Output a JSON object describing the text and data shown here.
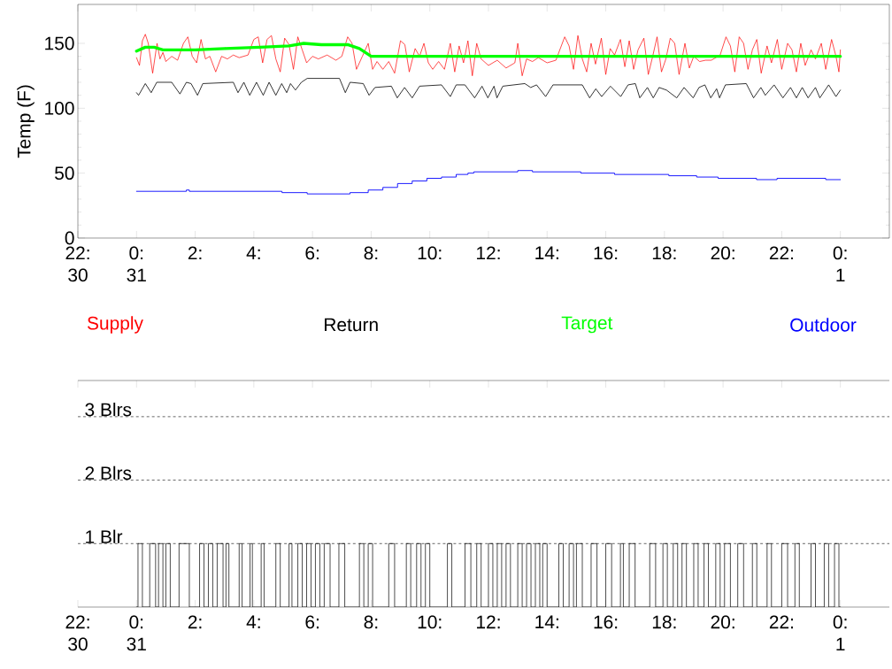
{
  "chart_data": [
    {
      "type": "line",
      "ylabel": "Temp (F)",
      "xlim": [
        -2,
        25.67
      ],
      "ylim": [
        0,
        180
      ],
      "xticks": [
        {
          "value": -2,
          "label": "22: 30"
        },
        {
          "value": 0,
          "label": "0: 31"
        },
        {
          "value": 2,
          "label": "2:"
        },
        {
          "value": 4,
          "label": "4:"
        },
        {
          "value": 6,
          "label": "6:"
        },
        {
          "value": 8,
          "label": "8:"
        },
        {
          "value": 10,
          "label": "10:"
        },
        {
          "value": 12,
          "label": "12:"
        },
        {
          "value": 14,
          "label": "14:"
        },
        {
          "value": 16,
          "label": "16:"
        },
        {
          "value": 18,
          "label": "18:"
        },
        {
          "value": 20,
          "label": "20:"
        },
        {
          "value": 22,
          "label": "22:"
        },
        {
          "value": 24,
          "label": "0: 1"
        }
      ],
      "yticks": [
        0,
        50,
        100,
        150
      ],
      "legend": "bottom",
      "series": [
        {
          "name": "Supply",
          "color": "#ff0000",
          "x": [
            0,
            0.1,
            0.2,
            0.3,
            0.4,
            0.55,
            0.7,
            0.8,
            0.9,
            1.0,
            1.2,
            1.4,
            1.6,
            1.75,
            1.9,
            2.05,
            2.2,
            2.35,
            2.5,
            2.7,
            2.9,
            3.1,
            3.3,
            3.5,
            3.8,
            4.0,
            4.15,
            4.3,
            4.45,
            4.6,
            4.75,
            4.9,
            5.05,
            5.2,
            5.35,
            5.5,
            5.65,
            5.8,
            6.0,
            6.2,
            6.5,
            6.8,
            7.0,
            7.2,
            7.35,
            7.5,
            7.7,
            7.9,
            8.05,
            8.2,
            8.4,
            8.6,
            8.8,
            9.0,
            9.15,
            9.3,
            9.5,
            9.65,
            9.8,
            9.95,
            10.1,
            10.3,
            10.5,
            10.7,
            10.85,
            11.0,
            11.15,
            11.3,
            11.45,
            11.6,
            11.75,
            12.0,
            12.3,
            12.6,
            12.9,
            13.0,
            13.15,
            13.3,
            13.5,
            13.7,
            14.0,
            14.3,
            14.6,
            14.75,
            14.9,
            15.05,
            15.2,
            15.35,
            15.5,
            15.65,
            15.85,
            16.0,
            16.15,
            16.3,
            16.5,
            16.65,
            16.8,
            16.95,
            17.1,
            17.3,
            17.45,
            17.6,
            17.75,
            17.9,
            18.05,
            18.2,
            18.35,
            18.5,
            18.7,
            18.85,
            19.0,
            19.2,
            19.4,
            19.6,
            19.9,
            20.1,
            20.25,
            20.4,
            20.55,
            20.7,
            20.85,
            21.0,
            21.15,
            21.3,
            21.5,
            21.65,
            21.85,
            22.0,
            22.2,
            22.35,
            22.5,
            22.65,
            22.8,
            23.0,
            23.15,
            23.35,
            23.5,
            23.7,
            23.85,
            23.95,
            24.0
          ],
          "values": [
            139,
            133,
            152,
            157,
            150,
            127,
            150,
            138,
            143,
            136,
            140,
            137,
            150,
            155,
            140,
            135,
            153,
            138,
            140,
            128,
            140,
            138,
            141,
            139,
            141,
            153,
            155,
            135,
            153,
            156,
            138,
            128,
            154,
            149,
            130,
            155,
            145,
            135,
            140,
            138,
            141,
            137,
            140,
            155,
            150,
            130,
            140,
            150,
            130,
            136,
            130,
            136,
            127,
            152,
            149,
            128,
            146,
            140,
            150,
            135,
            130,
            136,
            130,
            150,
            128,
            148,
            135,
            152,
            125,
            150,
            138,
            133,
            137,
            131,
            135,
            150,
            125,
            138,
            136,
            139,
            135,
            137,
            155,
            148,
            130,
            156,
            138,
            128,
            150,
            134,
            154,
            126,
            146,
            141,
            153,
            132,
            152,
            130,
            145,
            154,
            126,
            140,
            155,
            128,
            138,
            154,
            150,
            126,
            150,
            131,
            140,
            136,
            137,
            137,
            141,
            155,
            148,
            128,
            155,
            150,
            130,
            145,
            153,
            127,
            148,
            135,
            153,
            130,
            150,
            145,
            128,
            150,
            133,
            145,
            138,
            150,
            130,
            153,
            140,
            128,
            145
          ]
        },
        {
          "name": "Return",
          "color": "#000000",
          "x": [
            0,
            0.07,
            0.3,
            0.5,
            0.69,
            1.2,
            1.48,
            1.7,
            1.86,
            2.08,
            2.26,
            3.3,
            3.46,
            3.66,
            3.86,
            4.09,
            4.32,
            4.52,
            4.75,
            4.95,
            5.12,
            5.25,
            5.42,
            5.62,
            5.82,
            6.92,
            7.12,
            7.28,
            7.73,
            7.93,
            8.13,
            8.69,
            8.89,
            9.14,
            9.4,
            9.65,
            10.4,
            10.7,
            10.9,
            11.2,
            11.33,
            11.53,
            11.78,
            11.98,
            12.19,
            12.29,
            12.49,
            13.24,
            13.44,
            13.64,
            13.95,
            14.2,
            15.2,
            15.45,
            15.66,
            15.86,
            16.16,
            16.51,
            16.76,
            17.01,
            17.16,
            17.42,
            17.62,
            17.82,
            18.07,
            18.42,
            18.67,
            18.98,
            19.18,
            19.38,
            19.58,
            19.78,
            19.88,
            20.08,
            20.79,
            21.04,
            21.29,
            21.44,
            21.74,
            22.04,
            22.3,
            22.5,
            22.7,
            22.9,
            23.15,
            23.3,
            23.6,
            23.85,
            24.0
          ],
          "values": [
            112,
            110,
            119,
            112,
            120,
            120,
            111,
            120,
            119,
            110,
            119,
            120,
            112,
            120,
            110,
            120,
            110,
            120,
            110,
            119,
            112,
            119,
            114,
            120,
            123,
            123,
            112,
            120,
            119,
            110,
            116,
            117,
            108,
            116,
            108,
            117,
            118,
            109,
            118,
            118,
            114,
            108,
            117,
            108,
            117,
            108,
            117,
            119,
            116,
            118,
            109,
            118,
            118,
            108,
            115,
            109,
            117,
            109,
            118,
            119,
            108,
            116,
            108,
            116,
            114,
            108,
            116,
            108,
            116,
            118,
            108,
            115,
            108,
            118,
            119,
            108,
            116,
            110,
            118,
            108,
            116,
            108,
            116,
            108,
            116,
            108,
            118,
            109,
            114
          ]
        },
        {
          "name": "Target",
          "color": "#00ff00",
          "x": [
            0,
            0.3,
            0.6,
            0.9,
            2.0,
            3.0,
            4.2,
            5.2,
            5.7,
            6.3,
            7.2,
            7.6,
            8.0,
            24
          ],
          "values": [
            144,
            147,
            147,
            145,
            145,
            146,
            147,
            148,
            150,
            149,
            149,
            146,
            140,
            140
          ]
        },
        {
          "name": "Outdoor",
          "color": "#0000ff",
          "type": "step",
          "x": [
            0,
            1.7,
            1.8,
            4.96,
            5.82,
            7.28,
            7.9,
            8.4,
            8.9,
            9.4,
            9.9,
            10.4,
            10.9,
            11.3,
            11.5,
            13.0,
            13.5,
            15.15,
            16.3,
            18.15,
            19.1,
            19.83,
            21.14,
            21.84,
            23.5,
            24.0
          ],
          "values": [
            36,
            37,
            36,
            35,
            34,
            35,
            37,
            39,
            42,
            44,
            46,
            47,
            49,
            50,
            51,
            52,
            51,
            50,
            49,
            48,
            47,
            46,
            45,
            46,
            45,
            45
          ]
        }
      ]
    },
    {
      "type": "step",
      "xlim": [
        -2,
        25.67
      ],
      "ylim": [
        0,
        3.57
      ],
      "xticks": [
        {
          "value": -2,
          "label": "22: 30"
        },
        {
          "value": 0,
          "label": "0: 31"
        },
        {
          "value": 2,
          "label": "2:"
        },
        {
          "value": 4,
          "label": "4:"
        },
        {
          "value": 6,
          "label": "6:"
        },
        {
          "value": 8,
          "label": "8:"
        },
        {
          "value": 10,
          "label": "10:"
        },
        {
          "value": 12,
          "label": "12:"
        },
        {
          "value": 14,
          "label": "14:"
        },
        {
          "value": 16,
          "label": "16:"
        },
        {
          "value": 18,
          "label": "18:"
        },
        {
          "value": 20,
          "label": "20:"
        },
        {
          "value": 22,
          "label": "22:"
        },
        {
          "value": 24,
          "label": "0: 1"
        }
      ],
      "yticks": [
        {
          "value": 1,
          "label": "1 Blr"
        },
        {
          "value": 2,
          "label": "2 Blrs"
        },
        {
          "value": 3,
          "label": "3 Blrs"
        }
      ],
      "grid": "y",
      "series": [
        {
          "color": "#000000",
          "x": [
            0,
            0.05,
            0.2,
            0.45,
            0.65,
            0.75,
            0.9,
            1.0,
            1.15,
            1.45,
            1.8,
            2.15,
            2.3,
            2.45,
            2.6,
            2.75,
            2.95,
            3.05,
            3.15,
            3.5,
            3.6,
            3.87,
            3.95,
            4.25,
            4.35,
            4.75,
            4.9,
            5.2,
            5.3,
            5.5,
            5.65,
            5.8,
            5.95,
            6.1,
            6.25,
            6.4,
            6.6,
            6.9,
            7.1,
            7.6,
            7.75,
            7.9,
            8.05,
            8.6,
            8.8,
            9.2,
            9.35,
            9.55,
            9.7,
            9.85,
            10.0,
            10.6,
            10.75,
            11.2,
            11.4,
            11.6,
            11.75,
            12.0,
            12.15,
            12.3,
            12.45,
            12.6,
            12.75,
            13.0,
            13.15,
            13.3,
            13.45,
            13.6,
            13.75,
            13.85,
            14.0,
            14.4,
            14.55,
            14.75,
            14.9,
            15.0,
            15.2,
            15.5,
            15.7,
            16.0,
            16.2,
            16.5,
            16.6,
            16.8,
            17.0,
            17.5,
            17.7,
            17.95,
            18.1,
            18.3,
            18.45,
            18.6,
            18.75,
            19.0,
            19.15,
            19.35,
            19.5,
            19.75,
            19.9,
            20.05,
            20.25,
            20.5,
            20.7,
            21.0,
            21.15,
            21.5,
            21.65,
            22.0,
            22.2,
            22.45,
            22.6,
            23.0,
            23.15,
            23.45,
            23.6,
            23.8,
            23.95,
            24.0
          ],
          "values": [
            0,
            1,
            0,
            1,
            0,
            1,
            0,
            1,
            0,
            1,
            0,
            1,
            0,
            1,
            0,
            1,
            0,
            1,
            0,
            1,
            0,
            1,
            0,
            1,
            0,
            1,
            0,
            1,
            0,
            1,
            0,
            1,
            0,
            1,
            0,
            1,
            0,
            1,
            0,
            1,
            0,
            1,
            0,
            1,
            0,
            1,
            0,
            1,
            0,
            1,
            0,
            1,
            0,
            1,
            0,
            1,
            0,
            1,
            0,
            1,
            0,
            1,
            0,
            1,
            0,
            1,
            0,
            1,
            0,
            1,
            0,
            1,
            0,
            1,
            0,
            1,
            0,
            1,
            0,
            1,
            0,
            1,
            0,
            1,
            0,
            1,
            0,
            1,
            0,
            1,
            0,
            1,
            0,
            1,
            0,
            1,
            0,
            1,
            0,
            1,
            0,
            1,
            0,
            1,
            0,
            1,
            0,
            1,
            0,
            1,
            0,
            1,
            0,
            1,
            0,
            1,
            0,
            0
          ]
        }
      ]
    }
  ]
}
